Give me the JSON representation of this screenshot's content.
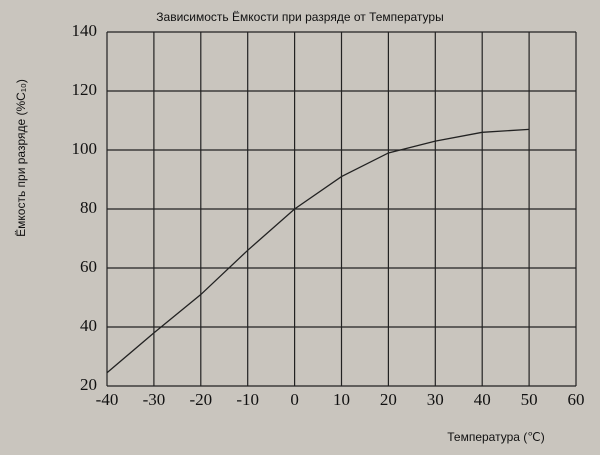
{
  "chart_data": {
    "type": "line",
    "title": "Зависимость Ёмкости при разряде от Температуры",
    "x_label": "Температура (℃)",
    "y_label": "Ёмкость при разряде (%C₁₀)",
    "x": [
      -40,
      -30,
      -20,
      -10,
      0,
      10,
      20,
      30,
      40,
      50
    ],
    "series": [
      {
        "name": "Ёмкость",
        "color": "#222222",
        "values": [
          24.5,
          38,
          51,
          66,
          80,
          91,
          99,
          103,
          106,
          107
        ]
      }
    ],
    "xlim": [
      -40,
      60
    ],
    "xticks": [
      -40,
      -30,
      -20,
      -10,
      0,
      10,
      20,
      30,
      40,
      50,
      60
    ],
    "ylim": [
      20,
      140
    ],
    "yticks": [
      20,
      40,
      60,
      80,
      100,
      120,
      140
    ],
    "grid": true
  }
}
